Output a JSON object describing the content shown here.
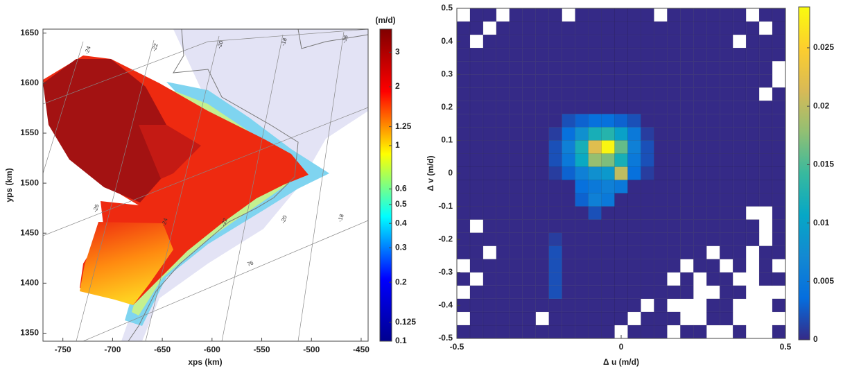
{
  "chart_data": [
    {
      "type": "map",
      "xlabel": "xps (km)",
      "ylabel": "yps (km)",
      "xlim": [
        -770,
        -443
      ],
      "ylim": [
        1342,
        1654
      ],
      "xticks": [
        -750,
        -700,
        -650,
        -600,
        -550,
        -500,
        -450
      ],
      "yticks": [
        1350,
        1400,
        1450,
        1500,
        1550,
        1600,
        1650
      ],
      "graticule_labels": [
        -24,
        -22,
        -20,
        -18,
        -16,
        -26,
        -24,
        -22,
        -20,
        -18,
        76
      ],
      "colorbar": {
        "label": "(m/d)",
        "scale": "log",
        "lim": [
          0.1,
          3.94
        ],
        "ticks": [
          0.1,
          0.125,
          0.2,
          0.3,
          0.4,
          0.5,
          0.6,
          1,
          1.25,
          2,
          3
        ],
        "colormap": [
          "#00008f",
          "#0000ff",
          "#00ffff",
          "#ffff00",
          "#ff0000",
          "#800000"
        ]
      }
    },
    {
      "type": "heatmap",
      "xlabel": "Δ u (m/d)",
      "ylabel": "Δ v (m/d)",
      "xlim": [
        -0.5,
        0.5
      ],
      "ylim": [
        -0.5,
        0.5
      ],
      "xticks": [
        -0.5,
        0,
        0.5
      ],
      "yticks": [
        -0.5,
        -0.4,
        -0.3,
        -0.2,
        -0.1,
        0,
        0.1,
        0.2,
        0.3,
        0.4,
        0.5
      ],
      "xbins": [
        -0.5,
        -0.46,
        -0.42,
        -0.38,
        -0.34,
        -0.3,
        -0.26,
        -0.22,
        -0.18,
        -0.14,
        -0.1,
        -0.06,
        -0.02,
        0.02,
        0.06,
        0.1,
        0.14,
        0.18,
        0.22,
        0.26,
        0.3,
        0.34,
        0.38,
        0.42,
        0.46,
        0.5
      ],
      "ybins": [
        -0.5,
        -0.46,
        -0.42,
        -0.38,
        -0.34,
        -0.3,
        -0.26,
        -0.22,
        -0.18,
        -0.14,
        -0.1,
        -0.06,
        -0.02,
        0.02,
        0.06,
        0.1,
        0.14,
        0.18,
        0.22,
        0.26,
        0.3,
        0.34,
        0.38,
        0.42,
        0.46,
        0.5
      ],
      "z": [
        [
          0,
          0,
          0,
          0,
          0,
          0,
          0,
          0,
          0,
          0,
          0,
          0,
          null,
          0,
          0,
          0,
          null,
          0,
          0,
          null,
          null,
          0,
          null,
          null,
          0
        ],
        [
          null,
          0,
          0,
          0,
          0,
          0,
          null,
          0,
          0,
          0,
          0,
          0,
          0,
          null,
          0,
          0,
          0,
          null,
          null,
          0,
          0,
          null,
          null,
          null,
          null
        ],
        [
          0,
          0,
          0,
          0,
          0,
          0,
          0,
          0,
          0,
          0,
          0,
          0,
          0,
          0,
          null,
          0,
          null,
          null,
          null,
          0,
          0,
          null,
          null,
          null,
          0
        ],
        [
          null,
          0,
          0,
          0,
          0,
          0,
          0,
          0.002,
          0,
          0,
          0,
          0,
          0,
          0,
          0,
          0,
          0,
          0,
          null,
          null,
          0,
          0,
          null,
          null,
          null
        ],
        [
          0,
          null,
          0,
          0,
          0,
          0,
          0,
          0.002,
          0,
          0,
          0,
          0,
          0,
          0,
          0,
          0,
          null,
          0,
          null,
          0,
          0,
          null,
          null,
          0,
          0
        ],
        [
          null,
          0,
          0,
          0,
          0,
          0,
          0,
          0.002,
          0,
          0,
          0,
          0,
          0,
          0,
          0,
          0,
          0,
          null,
          0,
          0,
          null,
          0,
          null,
          0,
          null
        ],
        [
          0,
          0,
          null,
          0,
          0,
          0,
          0,
          0.002,
          0,
          0,
          0,
          0,
          0,
          0,
          0,
          0,
          0,
          0,
          0,
          null,
          0,
          0,
          null,
          0,
          0
        ],
        [
          0,
          0,
          0,
          0,
          0,
          0,
          0,
          0.001,
          0,
          0,
          0,
          0,
          0,
          0,
          0,
          0,
          0,
          0,
          0,
          0,
          0,
          0,
          0,
          null,
          0
        ],
        [
          0,
          null,
          0,
          0,
          0,
          0,
          0,
          0,
          0,
          0,
          0,
          0,
          0,
          0,
          0,
          0,
          0,
          0,
          0,
          0,
          0,
          0,
          0,
          null,
          0
        ],
        [
          0,
          0,
          0,
          0,
          0,
          0,
          0,
          0,
          0,
          0,
          0.002,
          0,
          0,
          0,
          0,
          0,
          0,
          0,
          0,
          0,
          0,
          0,
          null,
          null,
          0
        ],
        [
          0,
          0,
          0,
          0,
          0,
          0,
          0,
          0,
          0,
          0.003,
          0.006,
          0.005,
          0,
          0,
          0,
          0,
          0,
          0,
          0,
          0,
          0,
          0,
          0,
          0,
          0
        ],
        [
          0,
          0,
          0,
          0,
          0,
          0,
          0,
          0,
          0,
          0.004,
          0.005,
          0.006,
          0.005,
          0,
          0,
          0,
          0,
          0,
          0,
          0,
          0,
          0,
          0,
          0,
          0
        ],
        [
          0,
          0,
          0,
          0,
          0,
          0,
          0,
          0.001,
          0.003,
          0.006,
          0.008,
          0.009,
          0.02,
          0.004,
          0.001,
          0,
          0,
          0,
          0,
          0,
          0,
          0,
          0,
          0,
          0
        ],
        [
          0,
          0,
          0,
          0,
          0,
          0,
          0,
          0.002,
          0.005,
          0.011,
          0.018,
          0.017,
          0.012,
          0.005,
          0.002,
          0,
          0,
          0,
          0,
          0,
          0,
          0,
          0,
          0,
          0
        ],
        [
          0,
          0,
          0,
          0,
          0,
          0,
          0,
          0.002,
          0.006,
          0.012,
          0.022,
          0.028,
          0.016,
          0.006,
          0.002,
          0,
          0,
          0,
          0,
          0,
          0,
          0,
          0,
          0,
          0
        ],
        [
          0,
          0,
          0,
          0,
          0,
          0,
          0,
          0.001,
          0.004,
          0.008,
          0.012,
          0.013,
          0.01,
          0.005,
          0.001,
          0,
          0,
          0,
          0,
          0,
          0,
          0,
          0,
          0,
          0
        ],
        [
          0,
          0,
          0,
          0,
          0,
          0,
          0,
          0,
          0.002,
          0.003,
          0.004,
          0.004,
          0.003,
          0.002,
          0,
          0,
          0,
          0,
          0,
          0,
          0,
          0,
          0,
          0,
          0
        ],
        [
          0,
          0,
          0,
          0,
          0,
          0,
          0,
          0,
          0,
          0,
          0,
          0,
          0,
          0,
          0,
          0,
          0,
          0,
          0,
          0,
          0,
          0,
          0,
          0,
          0
        ],
        [
          0,
          0,
          0,
          0,
          0,
          0,
          0,
          0,
          0,
          0,
          0,
          0,
          0,
          0,
          0,
          0,
          0,
          0,
          0,
          0,
          0,
          0,
          0,
          null,
          0
        ],
        [
          0,
          0,
          0,
          0,
          0,
          0,
          0,
          0,
          0,
          0,
          0,
          0,
          0,
          0,
          0,
          0,
          0,
          0,
          0,
          0,
          0,
          0,
          0,
          0,
          null
        ],
        [
          0,
          0,
          0,
          0,
          0,
          0,
          0,
          0,
          0,
          0,
          0,
          0,
          0,
          0,
          0,
          0,
          0,
          0,
          0,
          0,
          0,
          0,
          0,
          0,
          null
        ],
        [
          0,
          0,
          0,
          0,
          0,
          0,
          0,
          0,
          0,
          0,
          0,
          0,
          0,
          0,
          0,
          0,
          0,
          0,
          0,
          0,
          0,
          0,
          0,
          0,
          0
        ],
        [
          0,
          null,
          0,
          0,
          0,
          0,
          0,
          0,
          0,
          0,
          0,
          0,
          0,
          0,
          0,
          0,
          0,
          0,
          0,
          0,
          0,
          null,
          0,
          0,
          0
        ],
        [
          0,
          0,
          null,
          0,
          0,
          0,
          0,
          0,
          0,
          0,
          0,
          0,
          0,
          0,
          0,
          0,
          0,
          0,
          0,
          0,
          0,
          0,
          0,
          null,
          0
        ],
        [
          null,
          0,
          0,
          null,
          0,
          0,
          0,
          0,
          null,
          0,
          0,
          0,
          0,
          0,
          0,
          null,
          0,
          0,
          0,
          0,
          0,
          0,
          null,
          0,
          0
        ]
      ],
      "colorbar": {
        "lim": [
          0,
          0.0285
        ],
        "ticks": [
          0,
          0.005,
          0.01,
          0.015,
          0.02,
          0.025
        ],
        "colormap": [
          "#352a87",
          "#056ede",
          "#1389d2",
          "#06a7c6",
          "#38b99e",
          "#92bf73",
          "#d9ba56",
          "#fcce2e",
          "#f9fb0e"
        ]
      }
    }
  ]
}
